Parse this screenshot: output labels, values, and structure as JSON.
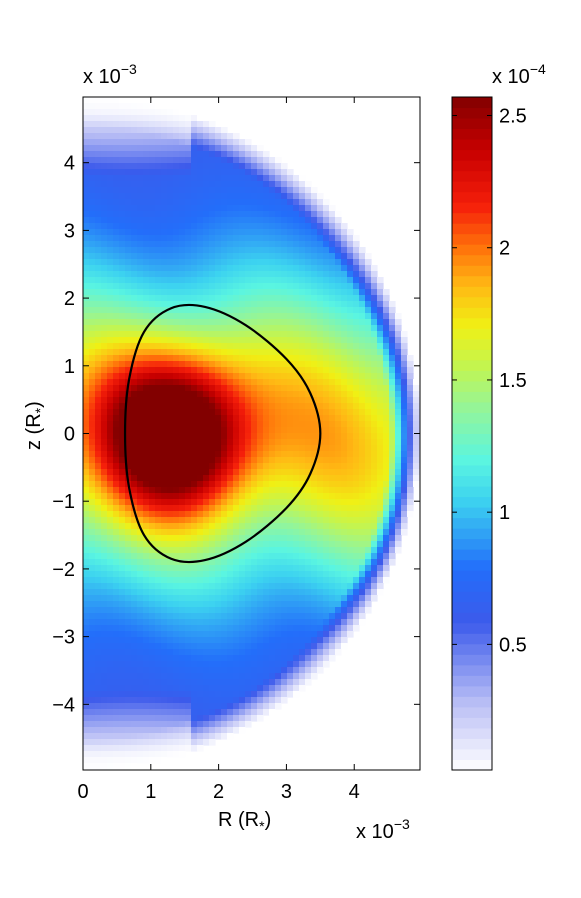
{
  "chart_data": [
    {
      "type": "heatmap",
      "description_kind": "filled contour plot of a toroidal field in the meridional plane",
      "xlabel": "R (R",
      "xlabel_sub": "*",
      "xlabel_close": ")",
      "ylabel": "z (R",
      "ylabel_sub": "*",
      "ylabel_close": ")",
      "x_exponent_label": "x 10",
      "x_exponent_power": "−3",
      "y_exponent_label": "x 10",
      "y_exponent_power": "−3",
      "xlim": [
        0,
        0.00497
      ],
      "ylim": [
        -0.00497,
        0.00497
      ],
      "x_ticks": [
        {
          "value": 0,
          "label": "0"
        },
        {
          "value": 0.001,
          "label": "1"
        },
        {
          "value": 0.002,
          "label": "2"
        },
        {
          "value": 0.003,
          "label": "3"
        },
        {
          "value": 0.004,
          "label": "4"
        }
      ],
      "y_ticks": [
        {
          "value": 0.004,
          "label": "4"
        },
        {
          "value": 0.003,
          "label": "3"
        },
        {
          "value": 0.002,
          "label": "2"
        },
        {
          "value": 0.001,
          "label": "1"
        },
        {
          "value": 0,
          "label": "0"
        },
        {
          "value": -0.001,
          "label": "−1"
        },
        {
          "value": -0.002,
          "label": "−2"
        },
        {
          "value": -0.003,
          "label": "−3"
        },
        {
          "value": -0.004,
          "label": "−4"
        }
      ],
      "domain_radius": 0.00497,
      "peak": {
        "R": 0.00139,
        "z": 0,
        "value": 0.000255
      },
      "contour_line": {
        "color": "#000000",
        "points_R_z": [
          [
            0.00062,
            0.0
          ],
          [
            0.00068,
            0.0008
          ],
          [
            0.0009,
            0.0015
          ],
          [
            0.0013,
            0.00185
          ],
          [
            0.0018,
            0.00187
          ],
          [
            0.0024,
            0.0016
          ],
          [
            0.003,
            0.0011
          ],
          [
            0.00335,
            0.0006
          ],
          [
            0.0035,
            0.0
          ],
          [
            0.00335,
            -0.0006
          ],
          [
            0.003,
            -0.0011
          ],
          [
            0.0024,
            -0.0016
          ],
          [
            0.0018,
            -0.00187
          ],
          [
            0.0013,
            -0.00185
          ],
          [
            0.0009,
            -0.0015
          ],
          [
            0.00068,
            -0.0008
          ]
        ]
      }
    },
    {
      "type": "colorbar",
      "exponent_label": "x 10",
      "exponent_power": "−4",
      "range": [
        2.5e-06,
        0.000257
      ],
      "ticks": [
        {
          "value": 5e-05,
          "label": "0.5"
        },
        {
          "value": 0.0001,
          "label": "1"
        },
        {
          "value": 0.00015,
          "label": "1.5"
        },
        {
          "value": 0.0002,
          "label": "2"
        },
        {
          "value": 0.00025,
          "label": "2.5"
        }
      ],
      "colormap": "jet-white"
    }
  ]
}
